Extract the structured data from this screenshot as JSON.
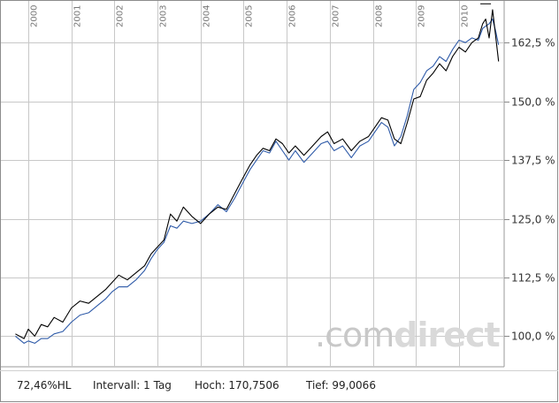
{
  "chart_data": {
    "type": "line",
    "x_ticks": [
      "2000",
      "2001",
      "2002",
      "2003",
      "2004",
      "2005",
      "2006",
      "2007",
      "2008",
      "2009",
      "2010"
    ],
    "y_ticks": [
      "100,0 %",
      "112,5 %",
      "125,0 %",
      "137,5 %",
      "150,0 %",
      "162,5 %"
    ],
    "y_tick_values": [
      100,
      112.5,
      125,
      137.5,
      150,
      162.5
    ],
    "xlim": [
      1999.65,
      2011.05
    ],
    "ylim": [
      93.5,
      171
    ],
    "grid": true,
    "series": [
      {
        "color": "#000000",
        "x": [
          1999.7,
          1999.9,
          2000.0,
          2000.15,
          2000.3,
          2000.45,
          2000.6,
          2000.8,
          2001.0,
          2001.2,
          2001.4,
          2001.6,
          2001.8,
          2001.95,
          2002.1,
          2002.3,
          2002.5,
          2002.7,
          2002.85,
          2003.0,
          2003.15,
          2003.3,
          2003.45,
          2003.6,
          2003.8,
          2004.0,
          2004.2,
          2004.4,
          2004.6,
          2004.8,
          2005.0,
          2005.15,
          2005.3,
          2005.45,
          2005.6,
          2005.75,
          2005.9,
          2006.05,
          2006.2,
          2006.4,
          2006.6,
          2006.8,
          2006.95,
          2007.1,
          2007.3,
          2007.5,
          2007.7,
          2007.9,
          2008.05,
          2008.2,
          2008.35,
          2008.5,
          2008.65,
          2008.8,
          2008.95,
          2009.1,
          2009.25,
          2009.4,
          2009.55,
          2009.7,
          2009.85,
          2010.0,
          2010.15,
          2010.3,
          2010.45,
          2010.55,
          2010.62,
          2010.7,
          2010.78,
          2010.85,
          2010.92
        ],
        "values": [
          100.5,
          99.5,
          101.5,
          100.0,
          102.5,
          102.0,
          104.0,
          103.0,
          106.0,
          107.5,
          107.0,
          108.5,
          110.0,
          111.5,
          113.0,
          112.0,
          113.5,
          115.0,
          117.5,
          119.0,
          120.5,
          126.0,
          124.5,
          127.5,
          125.5,
          124.0,
          126.0,
          127.5,
          127.0,
          130.5,
          134.0,
          136.5,
          138.5,
          140.0,
          139.5,
          142.0,
          141.0,
          139.0,
          140.5,
          138.5,
          140.5,
          142.5,
          143.5,
          141.0,
          142.0,
          139.5,
          141.5,
          142.5,
          144.5,
          146.5,
          146.0,
          142.0,
          141.0,
          145.5,
          150.5,
          151.0,
          154.5,
          156.0,
          158.0,
          156.5,
          159.5,
          161.5,
          160.5,
          162.5,
          163.5,
          166.5,
          167.5,
          163.5,
          169.5,
          164.0,
          158.5
        ]
      },
      {
        "color": "#2e5aa8",
        "x": [
          1999.7,
          1999.9,
          2000.0,
          2000.15,
          2000.3,
          2000.45,
          2000.6,
          2000.8,
          2001.0,
          2001.2,
          2001.4,
          2001.6,
          2001.8,
          2001.95,
          2002.1,
          2002.3,
          2002.5,
          2002.7,
          2002.85,
          2003.0,
          2003.15,
          2003.3,
          2003.45,
          2003.6,
          2003.8,
          2004.0,
          2004.2,
          2004.4,
          2004.6,
          2004.8,
          2005.0,
          2005.15,
          2005.3,
          2005.45,
          2005.6,
          2005.75,
          2005.9,
          2006.05,
          2006.2,
          2006.4,
          2006.6,
          2006.8,
          2006.95,
          2007.1,
          2007.3,
          2007.5,
          2007.7,
          2007.9,
          2008.05,
          2008.2,
          2008.35,
          2008.5,
          2008.65,
          2008.8,
          2008.95,
          2009.1,
          2009.25,
          2009.4,
          2009.55,
          2009.7,
          2009.85,
          2010.0,
          2010.15,
          2010.3,
          2010.45,
          2010.55,
          2010.62,
          2010.7,
          2010.78,
          2010.85,
          2010.92
        ],
        "values": [
          100.0,
          98.5,
          99.0,
          98.5,
          99.5,
          99.5,
          100.5,
          101.0,
          103.0,
          104.5,
          105.0,
          106.5,
          108.0,
          109.5,
          110.5,
          110.5,
          112.0,
          114.0,
          116.5,
          118.5,
          120.0,
          123.5,
          123.0,
          124.5,
          124.0,
          124.5,
          126.0,
          128.0,
          126.5,
          129.5,
          133.0,
          135.5,
          137.5,
          139.5,
          139.0,
          141.5,
          139.5,
          137.5,
          139.5,
          137.0,
          139.0,
          141.0,
          141.5,
          139.5,
          140.5,
          138.0,
          140.5,
          141.5,
          143.5,
          145.5,
          144.5,
          140.5,
          142.5,
          147.0,
          152.5,
          154.0,
          156.5,
          157.5,
          159.5,
          158.5,
          161.0,
          163.0,
          162.5,
          163.5,
          163.0,
          165.5,
          166.0,
          166.5,
          167.5,
          165.0,
          162.0
        ]
      }
    ]
  },
  "footer": {
    "percent": "72,46%HL",
    "interval": "Intervall: 1 Tag",
    "high": "Hoch: 170,7506",
    "low": "Tief: 99,0066"
  },
  "watermark": {
    "part1": ".com",
    "part2": "direct"
  }
}
